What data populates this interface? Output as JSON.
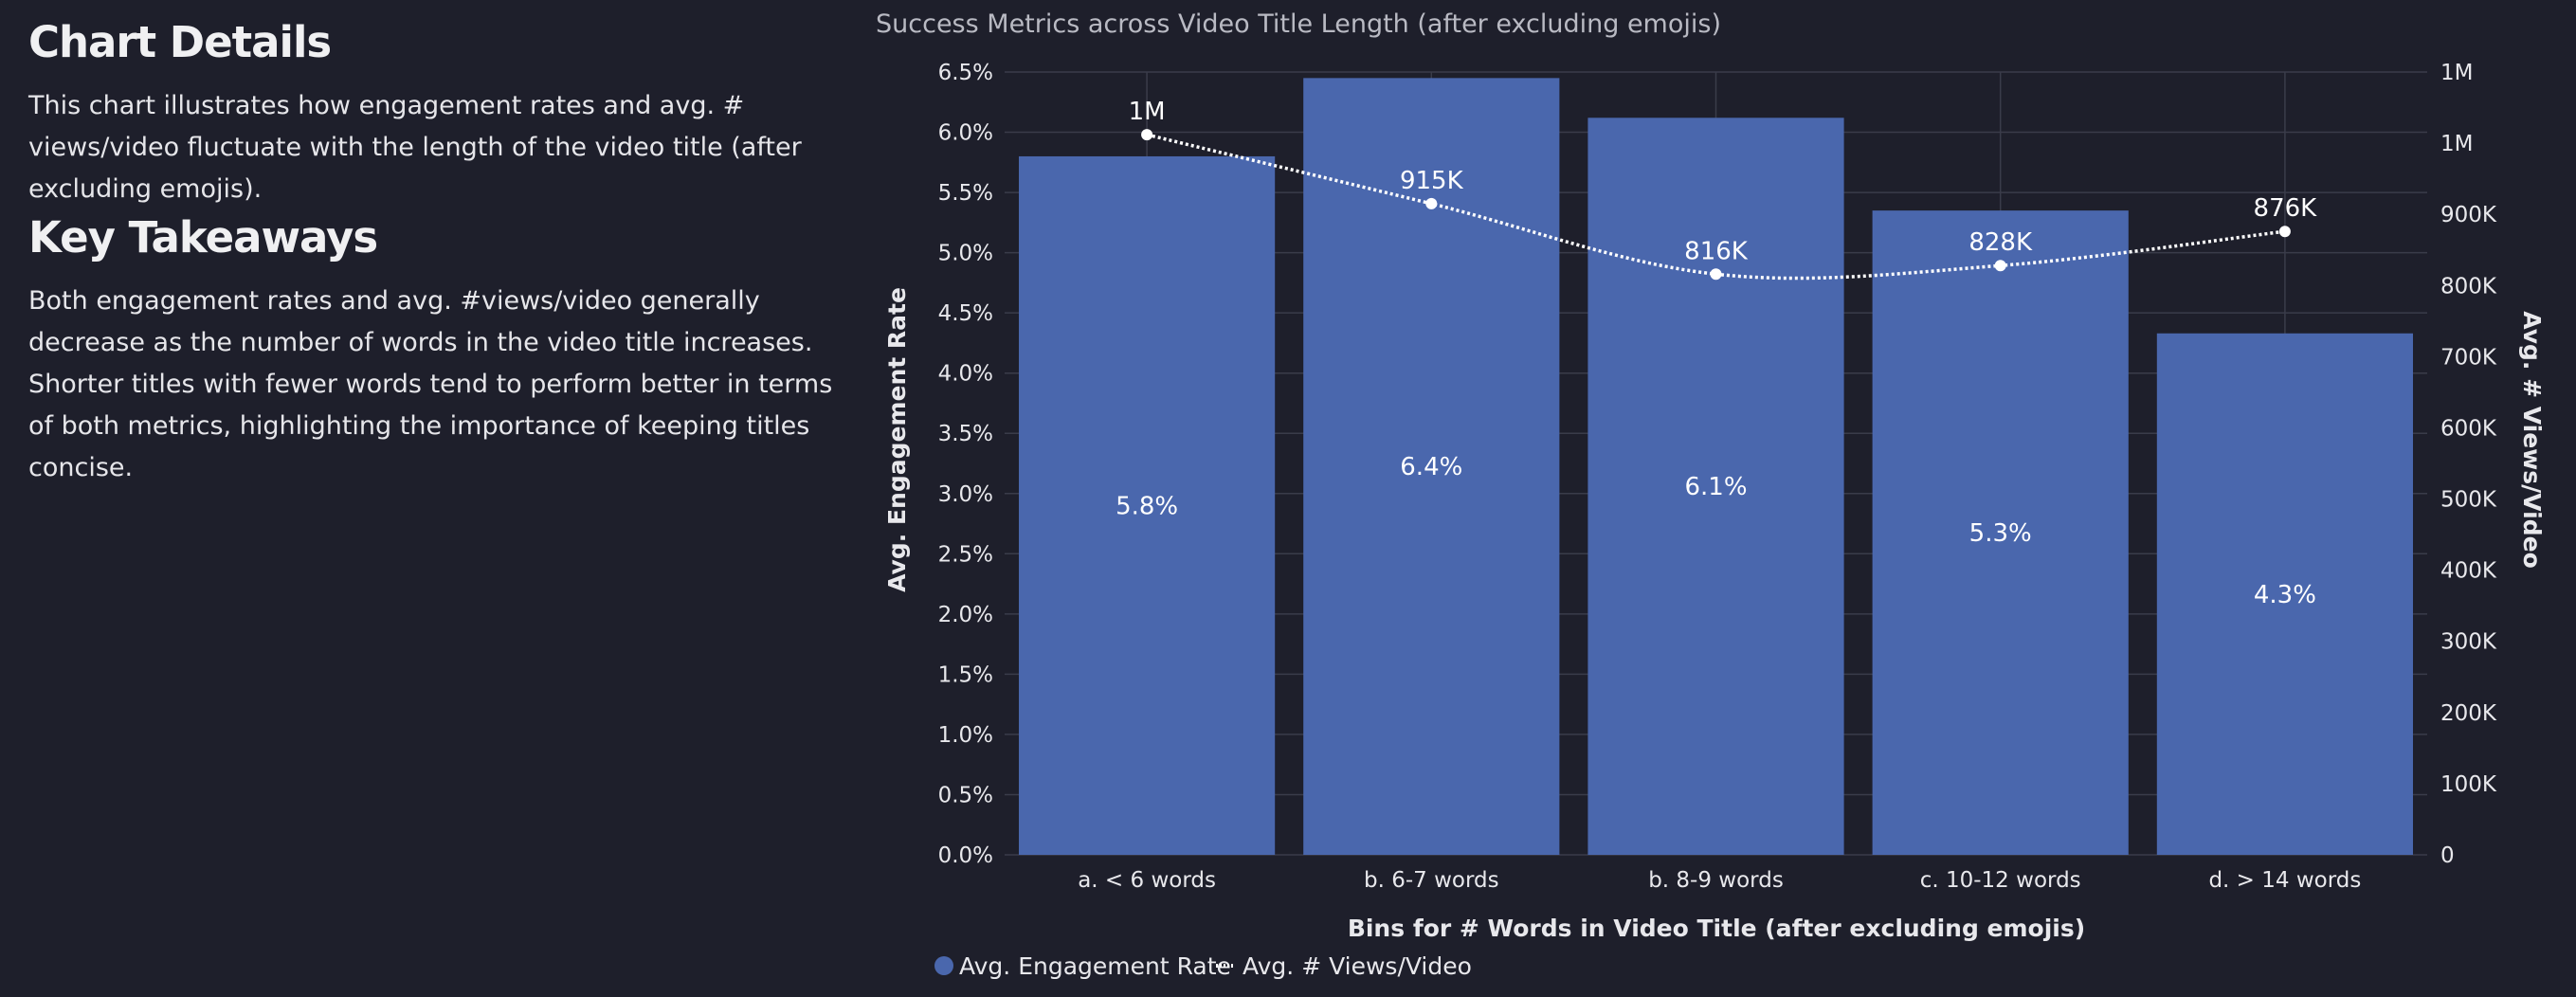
{
  "details": {
    "title": "Chart Details",
    "text": "This chart illustrates how engagement rates and avg. # views/video fluctuate with the length of the video title (after excluding emojis)."
  },
  "takeaways": {
    "title": "Key Takeaways",
    "text": "Both engagement rates and avg. #views/video generally decrease as the number of words in the video title increases. Shorter titles with fewer words tend to perform better in terms of both metrics, highlighting the importance of keeping titles concise."
  },
  "chart_data": {
    "type": "bar",
    "title": "Success Metrics across Video Title Length (after excluding emojis)",
    "xlabel": "Bins for # Words in Video Title (after excluding emojis)",
    "ylabel": "Avg. Engagement Rate",
    "y2label": "Avg. # Views/Video",
    "categories": [
      "a.  < 6 words",
      "b.  6-7 words",
      "b.  8-9 words",
      "c.  10-12 words",
      "d.  > 14 words"
    ],
    "series": [
      {
        "name": "Avg. Engagement Rate",
        "kind": "bar",
        "axis": "left",
        "values": [
          5.8,
          6.45,
          6.12,
          5.35,
          4.33
        ],
        "labels": [
          "5.8%",
          "6.4%",
          "6.1%",
          "5.3%",
          "4.3%"
        ]
      },
      {
        "name": "Avg. # Views/Video",
        "kind": "line",
        "axis": "right",
        "style": "dotted",
        "values": [
          1012000,
          915000,
          816000,
          828000,
          876000
        ],
        "labels": [
          "1M",
          "915K",
          "816K",
          "828K",
          "876K"
        ]
      }
    ],
    "ylim": [
      0,
      6.5
    ],
    "y_ticks": [
      "0.0%",
      "0.5%",
      "1.0%",
      "1.5%",
      "2.0%",
      "2.5%",
      "3.0%",
      "3.5%",
      "4.0%",
      "4.5%",
      "5.0%",
      "5.5%",
      "6.0%",
      "6.5%"
    ],
    "y2lim": [
      0,
      1100000
    ],
    "y2_ticks": [
      "0",
      "100K",
      "200K",
      "300K",
      "400K",
      "500K",
      "600K",
      "700K",
      "800K",
      "900K",
      "1M",
      "1M"
    ],
    "grid": true,
    "legend_position": "bottom-left",
    "colors": {
      "bar": "#4a67ad",
      "line": "#ffffff",
      "grid": "#3a3c4a",
      "background": "#1e1f2b"
    }
  }
}
